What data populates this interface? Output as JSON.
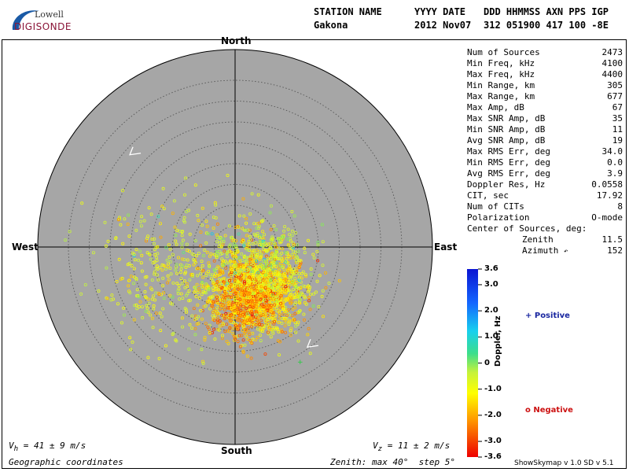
{
  "logo": {
    "top": "Lowell",
    "main": "DIGISONDE"
  },
  "header": {
    "col_titles": [
      "STATION NAME",
      "YYYY DATE",
      "DDD HHMMSS AXN PPS IGP"
    ],
    "station": "Gakona",
    "date": "2012 Nov07",
    "codes": "312 051900 417 100 -8E"
  },
  "stats": [
    {
      "label": "Num of Sources",
      "value": "2473"
    },
    {
      "label": "Min Freq, kHz",
      "value": "4100"
    },
    {
      "label": "Max Freq, kHz",
      "value": "4400"
    },
    {
      "label": "Min Range, km",
      "value": "305"
    },
    {
      "label": "Max Range, km",
      "value": "677"
    },
    {
      "label": "Max Amp, dB",
      "value": "67"
    },
    {
      "label": "Max SNR Amp, dB",
      "value": "35"
    },
    {
      "label": "Min SNR Amp, dB",
      "value": "11"
    },
    {
      "label": "Avg SNR Amp, dB",
      "value": "19"
    },
    {
      "label": "Max RMS Err, deg",
      "value": "34.0"
    },
    {
      "label": "Min RMS Err, deg",
      "value": "0.0"
    },
    {
      "label": "Avg RMS Err, deg",
      "value": "3.9"
    },
    {
      "label": "Doppler Res, Hz",
      "value": "0.0558"
    },
    {
      "label": "CIT, sec",
      "value": "17.92"
    },
    {
      "label": "Num of CITs",
      "value": "8"
    },
    {
      "label": "Polarization",
      "value": "O-mode"
    }
  ],
  "center": {
    "title": "Center of Sources, deg:",
    "zenith_label": "Zenith",
    "zenith_value": "11.5",
    "azimuth_label": "Azimuth",
    "azimuth_value": "152"
  },
  "directions": {
    "north": "North",
    "south": "South",
    "east": "East",
    "west": "West"
  },
  "footer": {
    "vh": "V",
    "vh_sub": "h",
    "vh_value": " = 41 ± 9 m/s",
    "vz": "V",
    "vz_sub": "z",
    "vz_value": " = 11 ± 2 m/s",
    "coords": "Geographic coordinates",
    "zenith_info": "Zenith: max 40°  step 5°",
    "version": "ShowSkymap v 1.0   SD v 5.1"
  },
  "legend": {
    "positive": "+ Positive",
    "negative": "o Negative"
  },
  "chart_data": {
    "type": "scatter",
    "coordinate_system": "polar",
    "max_zenith_deg": 40,
    "zenith_step_deg": 5,
    "colors": {
      "background": "#a6a6a6",
      "grid": "#555555",
      "axis": "#000000"
    },
    "colorbar": {
      "label": "Doppler, Hz",
      "min": -3.6,
      "max": 3.6,
      "ticks": [
        "3.6",
        "3.0",
        "2.0",
        "1.0",
        "0",
        "-1.0",
        "-2.0",
        "-3.0",
        "-3.6"
      ],
      "tick_values": [
        3.6,
        3.0,
        2.0,
        1.0,
        0,
        -1.0,
        -2.0,
        -3.0,
        -3.6
      ]
    },
    "clusters": [
      {
        "name": "",
        "center_zenith": 11.5,
        "center_azimuth": 152,
        "spread_deg": 6,
        "count": 1400,
        "doppler_mean": -1.4
      },
      {
        "name": "",
        "center_zenith": 14,
        "center_azimuth": 170,
        "spread_deg": 4,
        "count": 400,
        "doppler_mean": -2.3
      },
      {
        "name": "",
        "center_zenith": 16,
        "center_azimuth": 250,
        "spread_deg": 9,
        "count": 350,
        "doppler_mean": -0.8
      },
      {
        "name": "",
        "center_zenith": 7,
        "center_azimuth": 110,
        "spread_deg": 6,
        "count": 250,
        "doppler_mean": -0.2
      }
    ],
    "arrows": [
      {
        "zenith": 33,
        "azimuth": 313
      },
      {
        "zenith": 30,
        "azimuth": 142
      }
    ]
  }
}
